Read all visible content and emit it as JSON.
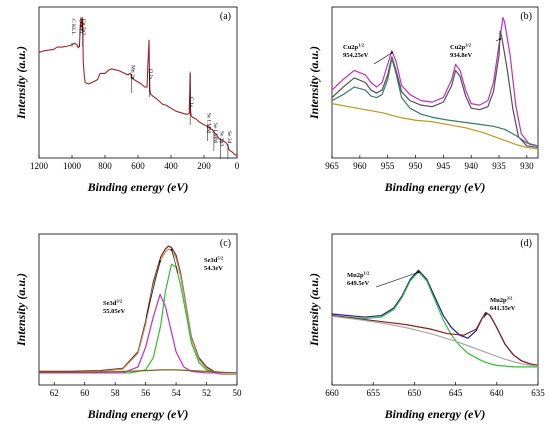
{
  "chart_data": [
    {
      "panel": "(a)",
      "type": "line",
      "xlabel": "Binding energy (eV)",
      "ylabel": "Intensity (a.u.)",
      "xlim": [
        1200,
        0
      ],
      "xticks": [
        1200,
        1000,
        800,
        600,
        400,
        200,
        0
      ],
      "ylim": [
        0,
        100
      ],
      "color": "#a0242a",
      "series": [
        {
          "x": [
            1200,
            1170,
            1140,
            1110,
            1090,
            1060,
            1030,
            1000,
            985,
            970,
            962,
            955,
            950,
            945,
            942,
            940,
            938,
            935,
            932,
            930,
            925,
            920,
            900,
            880,
            860,
            845,
            830,
            800,
            780,
            760,
            720,
            700,
            680,
            660,
            650,
            645,
            642,
            640,
            636,
            625,
            610,
            595,
            580,
            560,
            545,
            540,
            533,
            531,
            528,
            522,
            515,
            505,
            490,
            470,
            450,
            430,
            400,
            370,
            340,
            310,
            300,
            290,
            286,
            284,
            282,
            278,
            270,
            250,
            230,
            200,
            180,
            165,
            158,
            150,
            140,
            130,
            120,
            110,
            100,
            90,
            80,
            65,
            55,
            50,
            45,
            30,
            20,
            10,
            0
          ],
          "y": [
            70,
            71,
            71.5,
            72,
            73.5,
            73.5,
            74,
            75,
            76,
            75,
            73,
            74,
            86,
            93,
            90,
            88,
            84,
            92,
            65,
            61,
            54,
            50,
            49,
            50,
            51,
            52,
            56,
            56,
            58,
            59,
            58,
            57,
            56,
            55,
            56,
            56,
            55,
            54,
            53,
            52,
            51,
            50,
            49,
            47,
            47,
            62,
            78,
            58,
            45,
            42,
            41.5,
            40.5,
            39.5,
            37.5,
            35.5,
            35,
            33,
            31,
            30,
            29,
            29,
            29.5,
            44,
            56,
            32,
            28,
            27,
            26,
            24,
            22,
            21,
            20,
            19,
            19,
            17,
            16,
            15,
            13,
            12,
            12,
            11,
            10,
            8,
            6,
            5,
            4,
            3,
            2,
            2
          ]
        }
      ],
      "annotations": [
        {
          "label": "C KLL",
          "x": 1000
        },
        {
          "label": "O KLL",
          "x": 955
        },
        {
          "label": "Cu 2p3",
          "x": 935
        },
        {
          "label": "Mn  2p",
          "x": 640
        },
        {
          "label": "O 1s",
          "x": 531
        },
        {
          "label": "C 1s",
          "x": 284
        },
        {
          "label": "Se LMM",
          "x": 180
        },
        {
          "label": "Se LMM",
          "x": 140
        },
        {
          "label": "Se 3p3",
          "x": 100
        },
        {
          "label": "Se 3d",
          "x": 55
        }
      ]
    },
    {
      "panel": "(b)",
      "type": "line",
      "xlabel": "Binding energy (eV)",
      "ylabel": "Intensity (a.u.)",
      "xlim": [
        965,
        928
      ],
      "xticks": [
        965,
        960,
        955,
        950,
        945,
        940,
        935,
        930
      ],
      "ylim": [
        0,
        100
      ],
      "series": [
        {
          "color": "#c030c0",
          "x": [
            965,
            963,
            961,
            959,
            958,
            957,
            956,
            955,
            954.25,
            953.5,
            952.5,
            951,
            949,
            947,
            945,
            943.5,
            942.8,
            942,
            941,
            940,
            938.5,
            937,
            936,
            935,
            934.3,
            934,
            933,
            932,
            931,
            929.5,
            928
          ],
          "y": [
            45,
            52,
            58,
            55,
            50,
            47,
            50,
            62,
            71,
            64,
            48,
            42,
            38,
            37,
            40,
            52,
            62,
            58,
            45,
            36,
            35,
            38,
            50,
            75,
            93,
            90,
            68,
            35,
            16,
            9,
            8
          ]
        },
        {
          "color": "#505050",
          "x": [
            965,
            963,
            961,
            959,
            958,
            957,
            956,
            955,
            954.25,
            953.5,
            952.5,
            951,
            949,
            947,
            945,
            943.5,
            942.8,
            942,
            941,
            940,
            938.5,
            937,
            936,
            935,
            934.8,
            934.5,
            933.5,
            932.5,
            931.5,
            930,
            928
          ],
          "y": [
            40,
            47,
            53,
            50,
            45,
            43,
            45,
            55,
            67,
            58,
            44,
            38,
            35,
            34,
            37,
            48,
            58,
            54,
            41,
            33,
            32,
            34,
            44,
            68,
            84,
            80,
            58,
            32,
            14,
            8,
            7
          ]
        },
        {
          "color": "#3a7a6a",
          "x": [
            965,
            963,
            961,
            959,
            958,
            957,
            956,
            955,
            954.25,
            953.5,
            952.5,
            951,
            949,
            947,
            944,
            942,
            940,
            938,
            936,
            934,
            932,
            930,
            928
          ],
          "y": [
            38,
            42,
            47,
            45,
            41,
            40,
            42,
            52,
            66,
            56,
            40,
            33,
            29,
            27,
            25,
            24,
            23,
            22,
            21,
            19,
            15,
            10,
            8
          ]
        },
        {
          "color": "#b89a1e",
          "x": [
            965,
            962,
            959,
            956,
            953,
            950,
            947,
            944,
            941,
            938,
            935,
            932,
            930,
            928
          ],
          "y": [
            36,
            34,
            32,
            30,
            27,
            25,
            24,
            22,
            20,
            17,
            13,
            9,
            7,
            6
          ]
        }
      ],
      "annotations": [
        {
          "label": "Cu2p1/2",
          "value": "954.25eV",
          "x": 954.25
        },
        {
          "label": "Cu2p3/2",
          "value": "934.8eV",
          "x": 934.8
        }
      ]
    },
    {
      "panel": "(c)",
      "type": "line",
      "xlabel": "Binding energy (eV)",
      "ylabel": "Intensity (a.u.)",
      "xlim": [
        63,
        50
      ],
      "xticks": [
        62,
        60,
        58,
        56,
        54,
        52,
        50
      ],
      "ylim": [
        0,
        100
      ],
      "series": [
        {
          "color": "#8b1a1a",
          "x": [
            63,
            61,
            59,
            57.5,
            56.5,
            56,
            55.5,
            55,
            54.7,
            54.5,
            54.3,
            54,
            53.7,
            53.3,
            53,
            52.5,
            52,
            51.5,
            51,
            50.5,
            50
          ],
          "y": [
            9,
            9,
            9.5,
            11,
            22,
            42,
            68,
            85,
            90,
            92,
            91,
            86,
            74,
            50,
            32,
            18,
            12,
            9,
            8,
            8,
            8
          ]
        },
        {
          "color": "#b39b6a",
          "x": [
            63,
            61,
            59,
            57.5,
            56.5,
            56,
            55.5,
            55,
            54.7,
            54.5,
            54.3,
            54,
            53.7,
            53.3,
            53,
            52.5,
            52,
            51.5,
            51,
            50.5,
            50
          ],
          "y": [
            8.5,
            8.5,
            9,
            10.5,
            21,
            40,
            66,
            83,
            88,
            90,
            89,
            84,
            72,
            49,
            31,
            17,
            11,
            8,
            7,
            7,
            7
          ]
        },
        {
          "color": "#30c030",
          "x": [
            63,
            57,
            56,
            55.5,
            55,
            54.7,
            54.3,
            54,
            53.7,
            53.3,
            53,
            52.5,
            52,
            51,
            50
          ],
          "y": [
            8,
            8,
            10,
            18,
            40,
            62,
            80,
            78,
            66,
            45,
            28,
            15,
            10,
            8,
            8
          ]
        },
        {
          "color": "#c030c0",
          "x": [
            63,
            57.5,
            56.5,
            56,
            55.5,
            55.05,
            54.7,
            54.3,
            54,
            53.5,
            53,
            52,
            50
          ],
          "y": [
            8,
            8,
            12,
            25,
            45,
            60,
            52,
            35,
            22,
            12,
            9,
            8,
            8
          ]
        },
        {
          "color": "#7a6418",
          "x": [
            63,
            60,
            58,
            56,
            55,
            54,
            53,
            52,
            51,
            50
          ],
          "y": [
            8.5,
            8.5,
            8.8,
            9.5,
            10,
            10,
            9.5,
            9,
            8.5,
            8
          ]
        }
      ],
      "annotations": [
        {
          "label": "Se3d3/2",
          "value": "55.05eV",
          "x": 55.05
        },
        {
          "label": "Se3d5/2",
          "value": "54.3eV",
          "x": 54.3
        }
      ]
    },
    {
      "panel": "(d)",
      "type": "line",
      "xlabel": "Binding energy (eV)",
      "ylabel": "Intensity (a.u.)",
      "xlim": [
        660,
        635
      ],
      "xticks": [
        660,
        655,
        650,
        645,
        640,
        635
      ],
      "ylim": [
        0,
        100
      ],
      "series": [
        {
          "color": "#1a1aa0",
          "x": [
            660,
            658,
            656,
            654,
            652.5,
            651.5,
            650.5,
            649.5,
            648.5,
            647.5,
            646.5,
            645.5,
            644.5,
            643.5,
            642.5,
            641.8,
            641.35,
            640.8,
            640,
            639,
            638,
            637,
            636,
            635
          ],
          "y": [
            47,
            46,
            45,
            46,
            51,
            59,
            70,
            76,
            70,
            58,
            46,
            38,
            33,
            31,
            36,
            44,
            48,
            46,
            38,
            27,
            20,
            16,
            14,
            13
          ]
        },
        {
          "color": "#30c030",
          "x": [
            660,
            658,
            656,
            654,
            652.5,
            651.5,
            650.5,
            649.5,
            648.5,
            647.5,
            646.5,
            645.5,
            644.5,
            643.5,
            642.5,
            641.8,
            641.35,
            640.8,
            640,
            639,
            638,
            637,
            636,
            635
          ],
          "y": [
            46,
            45,
            44,
            45,
            50,
            58,
            69,
            75,
            69,
            56,
            43,
            33,
            26,
            21,
            18,
            16,
            15,
            14,
            13,
            12.5,
            12,
            12,
            12,
            12
          ]
        },
        {
          "color": "#8b2020",
          "x": [
            660,
            657,
            654,
            651,
            648,
            646,
            644,
            642.5,
            641.8,
            641.35,
            640.8,
            640,
            639,
            638,
            637,
            636,
            635
          ],
          "y": [
            46,
            44,
            42,
            40,
            37,
            34,
            33,
            37,
            44,
            48,
            46,
            38,
            27,
            20,
            16,
            14,
            13
          ]
        },
        {
          "color": "#a8a8a8",
          "x": [
            660,
            657,
            654,
            651,
            648,
            645,
            643,
            641,
            639,
            637,
            635
          ],
          "y": [
            45.5,
            43.5,
            41,
            38,
            34,
            29,
            25,
            21,
            17,
            14,
            12.5
          ]
        }
      ],
      "annotations": [
        {
          "label": "Mn2p1/2",
          "value": "649.5eV",
          "x": 649.5
        },
        {
          "label": "Mn2p3/2",
          "value": "641.35eV",
          "x": 641.35
        }
      ]
    }
  ]
}
